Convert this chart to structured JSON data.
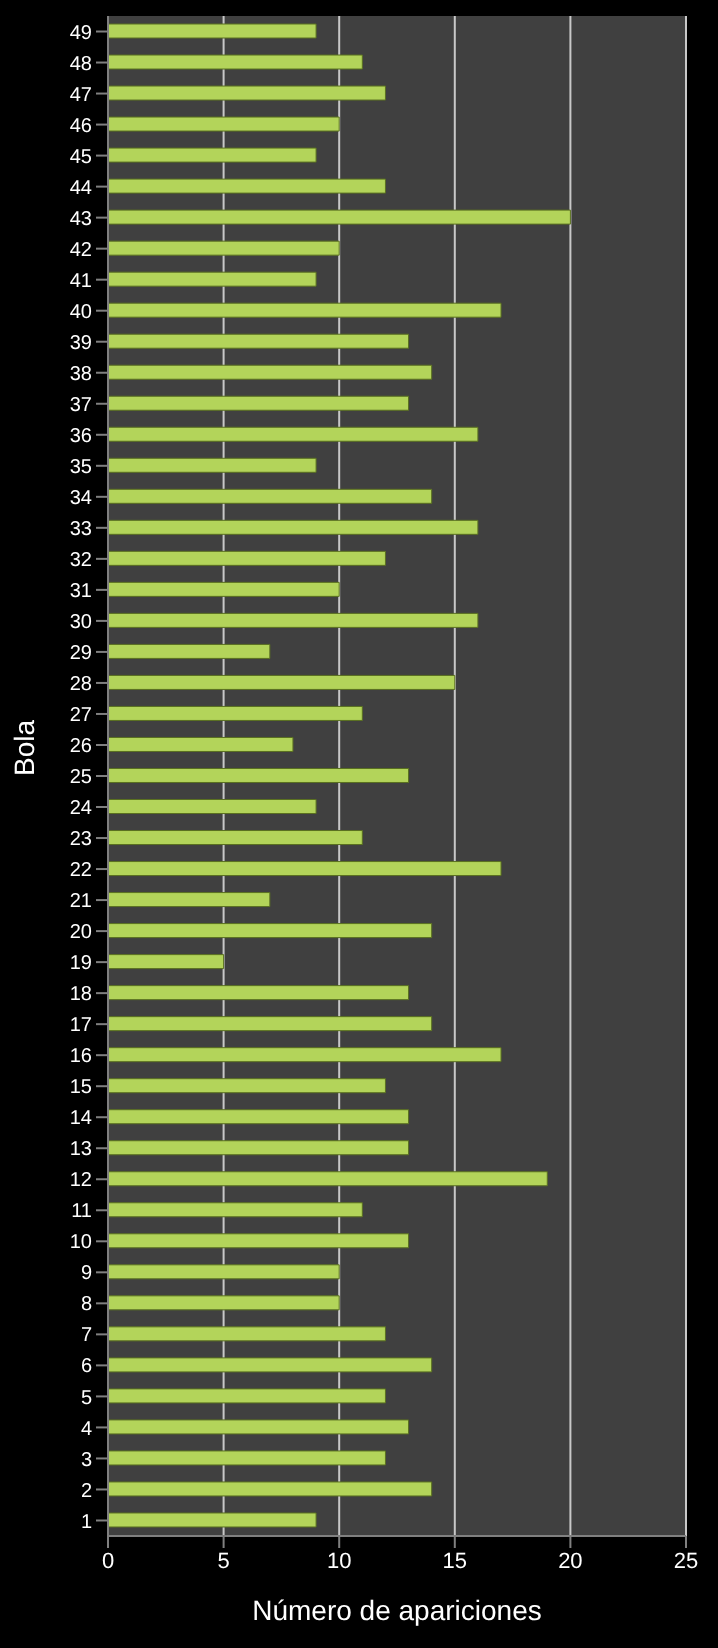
{
  "chart_data": {
    "type": "bar",
    "orientation": "horizontal",
    "xlabel": "Número  de apariciones",
    "ylabel": "Bola",
    "categories": [
      "49",
      "48",
      "47",
      "46",
      "45",
      "44",
      "43",
      "42",
      "41",
      "40",
      "39",
      "38",
      "37",
      "36",
      "35",
      "34",
      "33",
      "32",
      "31",
      "30",
      "29",
      "28",
      "27",
      "26",
      "25",
      "24",
      "23",
      "22",
      "21",
      "20",
      "19",
      "18",
      "17",
      "16",
      "15",
      "14",
      "13",
      "12",
      "11",
      "10",
      "9",
      "8",
      "7",
      "6",
      "5",
      "4",
      "3",
      "2",
      "1"
    ],
    "values": [
      9,
      11,
      12,
      10,
      9,
      12,
      20,
      10,
      9,
      17,
      13,
      14,
      13,
      16,
      9,
      14,
      16,
      12,
      10,
      16,
      7,
      15,
      11,
      8,
      13,
      9,
      11,
      17,
      7,
      14,
      5,
      13,
      14,
      17,
      12,
      13,
      13,
      19,
      11,
      13,
      10,
      10,
      12,
      14,
      12,
      13,
      12,
      14,
      9
    ],
    "color": "#b3d45a",
    "xlim": [
      0,
      25
    ],
    "xticks": [
      0,
      5,
      10,
      15,
      20,
      25
    ],
    "grid": "x"
  }
}
